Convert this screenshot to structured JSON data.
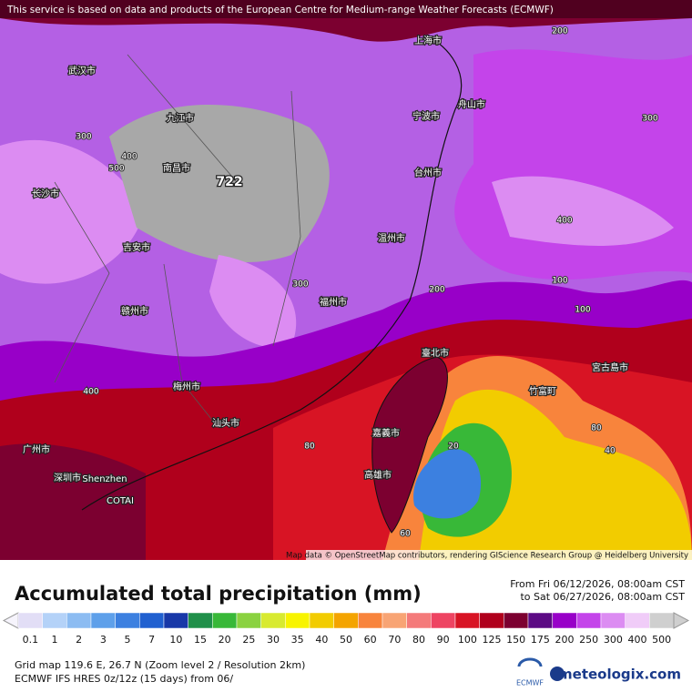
{
  "header": {
    "notice": "This service is based on data and products of the European Centre for Medium-range Weather Forecasts (ECMWF)"
  },
  "map": {
    "labels": [
      "722",
      "上海市",
      "舟山市",
      "宁波市",
      "台州市",
      "温州市",
      "福州市",
      "南昌市",
      "长沙市",
      "赣州市",
      "吉安市",
      "梅州市",
      "汕头市",
      "广州市",
      "深圳市",
      "Shenzhen",
      "COTAI",
      "臺北市",
      "嘉義市",
      "高雄市",
      "竹富町",
      "宮古島市",
      "九江市",
      "武汉市",
      "300",
      "400",
      "500",
      "200",
      "300",
      "400",
      "100",
      "80",
      "60",
      "40",
      "20",
      "300",
      "400",
      "200",
      "100",
      "80"
    ],
    "credit": "Map data © OpenStreetMap contributors, rendering GIScience Research Group @ Heidelberg University"
  },
  "footer": {
    "title": "Accumulated total precipitation (mm)",
    "from": "From Fri 06/12/2026, 08:00am CST",
    "to": "to Sat 06/27/2026, 08:00am CST",
    "legend": [
      {
        "value": 0.1,
        "color": "#e2def6"
      },
      {
        "value": 1,
        "color": "#b4d2f8"
      },
      {
        "value": 2,
        "color": "#8cbcf2"
      },
      {
        "value": 3,
        "color": "#5ea0ea"
      },
      {
        "value": 5,
        "color": "#3c80e0"
      },
      {
        "value": 7,
        "color": "#2060d0"
      },
      {
        "value": 10,
        "color": "#1838a8"
      },
      {
        "value": 15,
        "color": "#20904a"
      },
      {
        "value": 20,
        "color": "#38b838"
      },
      {
        "value": 25,
        "color": "#8ad240"
      },
      {
        "value": 30,
        "color": "#d8ea30"
      },
      {
        "value": 35,
        "color": "#f8f400"
      },
      {
        "value": 40,
        "color": "#f2cc00"
      },
      {
        "value": 50,
        "color": "#f4a400"
      },
      {
        "value": 60,
        "color": "#f8843c"
      },
      {
        "value": 70,
        "color": "#f8a474"
      },
      {
        "value": 80,
        "color": "#f47a7a"
      },
      {
        "value": 90,
        "color": "#ee4462"
      },
      {
        "value": 100,
        "color": "#d81424"
      },
      {
        "value": 125,
        "color": "#b0001c"
      },
      {
        "value": 150,
        "color": "#7c0030"
      },
      {
        "value": 175,
        "color": "#5c0a84"
      },
      {
        "value": 200,
        "color": "#9800c8"
      },
      {
        "value": 250,
        "color": "#c444ea"
      },
      {
        "value": 300,
        "color": "#dc8cf2"
      },
      {
        "value": 400,
        "color": "#f0ccf8"
      },
      {
        "value": 500,
        "color": "#cfcfcf"
      }
    ],
    "grid": "Grid map 119.6 E, 26.7 N (Zoom level 2 / Resolution 2km)",
    "model": "ECMWF IFS HRES 0z/12z (15 days)  from  06/",
    "ecmwf": "ECMWF",
    "brand": "meteologix.com"
  }
}
